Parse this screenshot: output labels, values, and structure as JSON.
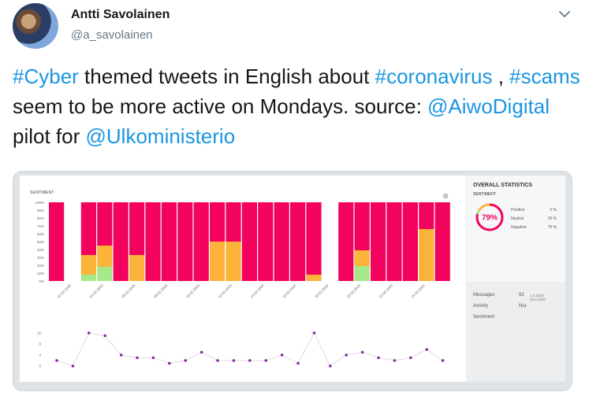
{
  "author": {
    "display_name": "Antti Savolainen",
    "handle": "@a_savolainen"
  },
  "tweet": {
    "segments": [
      {
        "text": "#Cyber",
        "link": true
      },
      {
        "text": " themed tweets in English about ",
        "link": false
      },
      {
        "text": "#coronavirus",
        "link": true
      },
      {
        "text": " , ",
        "link": false
      },
      {
        "text": "#scams",
        "link": true
      },
      {
        "text": " seem to be more active on Mondays. source: ",
        "link": false
      },
      {
        "text": "@AiwoDigital",
        "link": true
      },
      {
        "text": " pilot for ",
        "link": false
      },
      {
        "text": "@Ulkoministerio",
        "link": true
      }
    ]
  },
  "colors": {
    "link": "#1b95e0",
    "negative": "#f2045e",
    "neutral": "#fbb339",
    "positive": "#a7e88a",
    "line_point": "#8e24aa"
  },
  "dashboard": {
    "sentiment_title": "SENTIMENT",
    "overall_title": "OVERALL STATISTICS",
    "overall_subtitle": "SENTIMENT",
    "donut_value": "79%",
    "stats": [
      {
        "label": "Positive",
        "value": "5 %"
      },
      {
        "label": "Neutral",
        "value": "16 %"
      },
      {
        "label": "Negative",
        "value": "79 %"
      }
    ],
    "meta": [
      {
        "label": "Messages",
        "value": "92",
        "range": "1.2.2020 - 29.2.2020"
      },
      {
        "label": "Activity",
        "value": "N/a",
        "range": ""
      },
      {
        "label": "Sentiment",
        "value": "",
        "range": ""
      }
    ]
  },
  "chart_data": [
    {
      "type": "bar",
      "stacked": true,
      "ylim": [
        0,
        100
      ],
      "y_ticks": [
        "100%",
        "90%",
        "80%",
        "70%",
        "60%",
        "50%",
        "40%",
        "30%",
        "20%",
        "10%",
        "0%"
      ],
      "x_tick_labels": [
        "02.02.2020",
        "04.02.2020",
        "06.02.2020",
        "08.02.2020",
        "10.02.2020",
        "12.02.2020",
        "14.02.2020",
        "16.02.2020",
        "18.02.2020",
        "20.02.2020",
        "22.02.2020",
        "24.02.2020"
      ],
      "positive": [
        0,
        null,
        8,
        18,
        0,
        0,
        0,
        0,
        0,
        0,
        0,
        0,
        0,
        0,
        0,
        0,
        0,
        null,
        0,
        19,
        0,
        0,
        0,
        0,
        0
      ],
      "neutral": [
        0,
        null,
        25,
        27,
        0,
        33,
        0,
        0,
        0,
        0,
        50,
        50,
        0,
        0,
        0,
        0,
        8,
        null,
        0,
        20,
        0,
        0,
        0,
        66,
        0
      ],
      "negative": [
        100,
        null,
        67,
        55,
        100,
        67,
        100,
        100,
        100,
        100,
        50,
        50,
        100,
        100,
        100,
        100,
        92,
        null,
        100,
        61,
        100,
        100,
        100,
        34,
        100
      ]
    },
    {
      "type": "line",
      "ylim": [
        0,
        12
      ],
      "y_ticks": [
        "12",
        "8",
        "4",
        "0"
      ],
      "values": [
        2,
        0,
        12,
        11,
        4,
        3,
        3,
        1,
        2,
        5,
        2,
        2,
        2,
        2,
        4,
        1,
        12,
        0,
        4,
        5,
        3,
        2,
        3,
        6,
        2
      ]
    }
  ]
}
